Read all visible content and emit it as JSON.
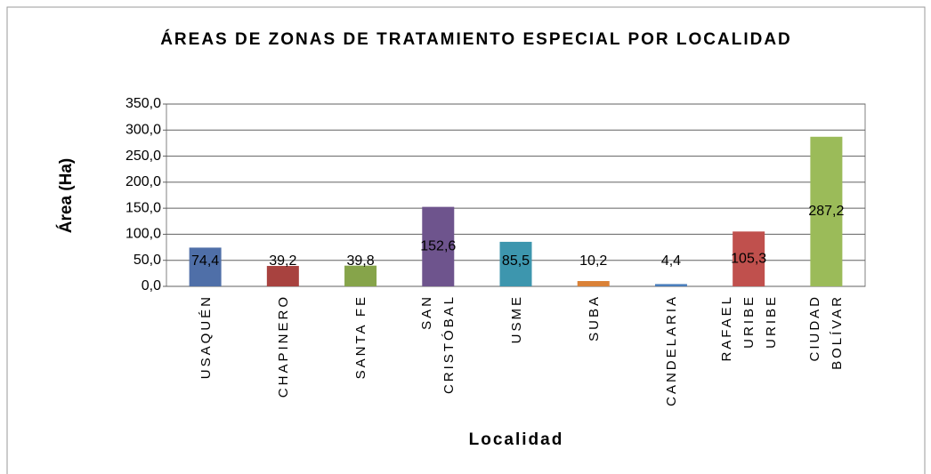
{
  "chart_data": {
    "type": "bar",
    "title": "ÁREAS DE ZONAS DE TRATAMIENTO ESPECIAL POR LOCALIDAD",
    "x_label": "Localidad",
    "y_label": "Área (Ha)",
    "categories": [
      "USAQUÉN",
      "CHAPINERO",
      "SANTA FE",
      "SAN CRISTÓBAL",
      "USME",
      "SUBA",
      "CANDELARIA",
      "RAFAEL URIBE URIBE",
      "CIUDAD BOLÍVAR"
    ],
    "values": [
      74.4,
      39.2,
      39.8,
      152.6,
      85.5,
      10.2,
      4.4,
      105.3,
      287.2
    ],
    "value_labels": [
      "74,4",
      "39,2",
      "39,8",
      "152,6",
      "85,5",
      "10,2",
      "4,4",
      "105,3",
      "287,2"
    ],
    "colors": [
      "#4f6fa8",
      "#a8423f",
      "#86a44a",
      "#6e548d",
      "#3d96ae",
      "#da8137",
      "#4a7ebb",
      "#c0504d",
      "#9bbb59"
    ],
    "ylim": [
      0,
      350
    ],
    "yticks": [
      {
        "value": 0,
        "label": "0,0"
      },
      {
        "value": 50,
        "label": "50,0"
      },
      {
        "value": 100,
        "label": "100,0"
      },
      {
        "value": 150,
        "label": "150,0"
      },
      {
        "value": 200,
        "label": "200,0"
      },
      {
        "value": 250,
        "label": "250,0"
      },
      {
        "value": 300,
        "label": "300,0"
      },
      {
        "value": 350,
        "label": "350,0"
      }
    ],
    "grid": true
  }
}
